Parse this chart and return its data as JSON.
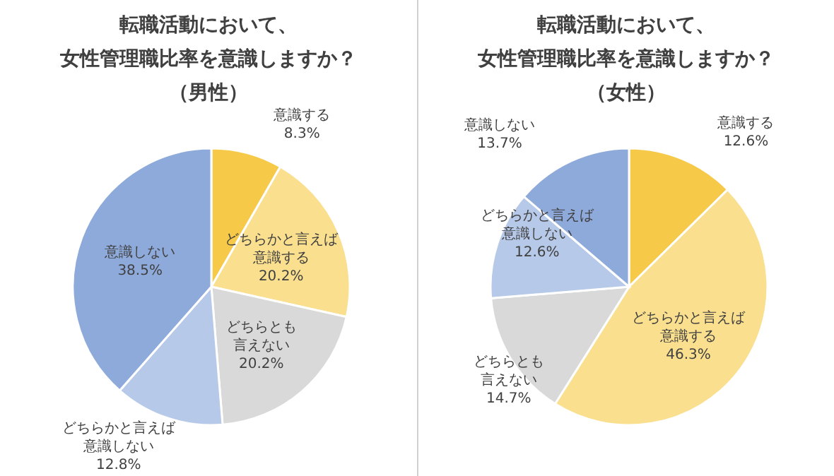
{
  "chart_data": [
    {
      "type": "pie",
      "title": "転職活動において、女性管理職比率を意識しますか？（男性）",
      "categories": [
        "意識する",
        "どちらかと言えば意識する",
        "どちらとも言えない",
        "どちらかと言えば意識しない",
        "意識しない"
      ],
      "values": [
        8.3,
        20.2,
        20.2,
        12.8,
        38.5
      ],
      "value_labels": [
        "8.3%",
        "20.2%",
        "20.2%",
        "12.8%",
        "38.5%"
      ],
      "colors": [
        "#f7c948",
        "#fadf8f",
        "#d9d9d9",
        "#b7c9e8",
        "#8eaadb"
      ]
    },
    {
      "type": "pie",
      "title": "転職活動において、女性管理職比率を意識しますか？（女性）",
      "categories": [
        "意識する",
        "どちらかと言えば意識する",
        "どちらとも言えない",
        "どちらかと言えば意識しない",
        "意識しない"
      ],
      "values": [
        12.6,
        46.3,
        14.7,
        12.6,
        13.7
      ],
      "value_labels": [
        "12.6%",
        "46.3%",
        "14.7%",
        "12.6%",
        "13.7%"
      ],
      "colors": [
        "#f7c948",
        "#fadf8f",
        "#d9d9d9",
        "#b7c9e8",
        "#8eaadb"
      ]
    }
  ]
}
